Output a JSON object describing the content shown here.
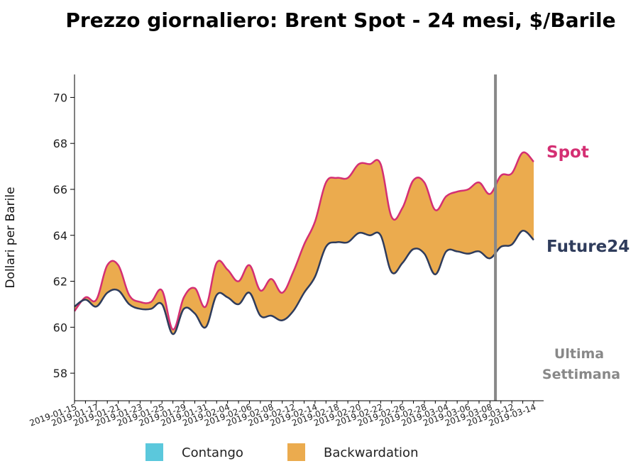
{
  "chart_data": {
    "type": "area",
    "title": "Prezzo giornaliero: Brent Spot - 24 mesi, $/Barile",
    "ylabel": "Dollari per Barile",
    "xlabel": "",
    "ylim": [
      56.8,
      71.0
    ],
    "yticks": [
      58,
      60,
      62,
      64,
      66,
      68,
      70
    ],
    "x_tick_labels": [
      "2019-01-15",
      "2019-01-17",
      "2019-01-21",
      "2019-01-23",
      "2019-01-25",
      "2019-01-29",
      "2019-01-31",
      "2019-02-04",
      "2019-02-06",
      "2019-02-08",
      "2019-02-12",
      "2019-02-14",
      "2019-02-18",
      "2019-02-20",
      "2019-02-22",
      "2019-02-26",
      "2019-02-28",
      "2019-03-04",
      "2019-03-06",
      "2019-03-08",
      "2019-03-12",
      "2019-03-14"
    ],
    "x": [
      "2019-01-15",
      "2019-01-16",
      "2019-01-17",
      "2019-01-18",
      "2019-01-21",
      "2019-01-22",
      "2019-01-23",
      "2019-01-24",
      "2019-01-25",
      "2019-01-28",
      "2019-01-29",
      "2019-01-30",
      "2019-01-31",
      "2019-02-01",
      "2019-02-04",
      "2019-02-05",
      "2019-02-06",
      "2019-02-07",
      "2019-02-08",
      "2019-02-11",
      "2019-02-12",
      "2019-02-13",
      "2019-02-14",
      "2019-02-15",
      "2019-02-18",
      "2019-02-19",
      "2019-02-20",
      "2019-02-21",
      "2019-02-22",
      "2019-02-25",
      "2019-02-26",
      "2019-02-27",
      "2019-02-28",
      "2019-03-01",
      "2019-03-04",
      "2019-03-05",
      "2019-03-06",
      "2019-03-07",
      "2019-03-08",
      "2019-03-11",
      "2019-03-12",
      "2019-03-13",
      "2019-03-14"
    ],
    "series": [
      {
        "name": "Spot",
        "color": "#d42f73",
        "values": [
          60.7,
          61.3,
          61.2,
          62.7,
          62.7,
          61.4,
          61.1,
          61.1,
          61.6,
          59.9,
          61.3,
          61.7,
          60.9,
          62.8,
          62.5,
          62.0,
          62.7,
          61.6,
          62.1,
          61.5,
          62.4,
          63.6,
          64.6,
          66.3,
          66.5,
          66.5,
          67.1,
          67.1,
          67.1,
          64.8,
          65.2,
          66.4,
          66.3,
          65.1,
          65.7,
          65.9,
          66.0,
          66.3,
          65.8,
          66.6,
          66.7,
          67.6,
          67.2
        ]
      },
      {
        "name": "Future24",
        "color": "#2f3c5c",
        "values": [
          60.9,
          61.2,
          60.9,
          61.5,
          61.6,
          61.0,
          60.8,
          60.8,
          61.0,
          59.7,
          60.8,
          60.6,
          60.0,
          61.4,
          61.3,
          61.0,
          61.5,
          60.5,
          60.5,
          60.3,
          60.7,
          61.5,
          62.2,
          63.5,
          63.7,
          63.7,
          64.1,
          64.0,
          64.0,
          62.4,
          62.8,
          63.4,
          63.2,
          62.3,
          63.3,
          63.3,
          63.2,
          63.3,
          63.0,
          63.5,
          63.6,
          64.2,
          63.8
        ]
      }
    ],
    "annotation": {
      "label_line1": "Ultima",
      "label_line2": "Settimana",
      "x_position": "2019-03-08.5",
      "color": "#888888"
    },
    "legend": {
      "placement": "bottom-center",
      "items": [
        {
          "label": "Contango",
          "color": "#5bc8dc"
        },
        {
          "label": "Backwardation",
          "color": "#ebab4e"
        }
      ]
    },
    "fill_color": "#ebab4e",
    "grid": false
  }
}
